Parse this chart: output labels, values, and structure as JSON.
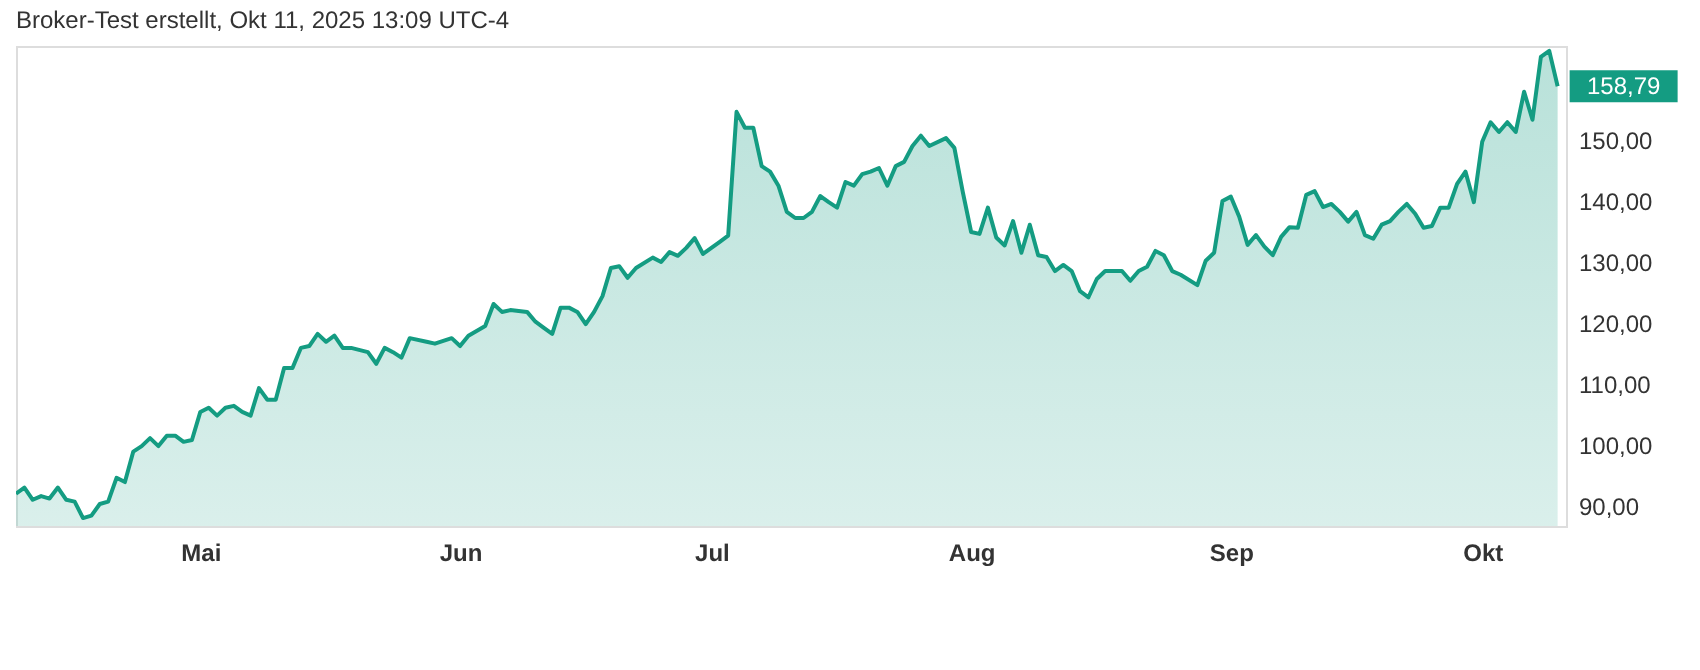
{
  "chart_data": {
    "type": "area",
    "title": "Broker-Test erstellt, Okt 11, 2025 13:09 UTC-4",
    "x": [
      "2025-04-09",
      "2025-04-10",
      "2025-04-11",
      "2025-04-12",
      "2025-04-13",
      "2025-04-14",
      "2025-04-15",
      "2025-04-16",
      "2025-04-17",
      "2025-04-18",
      "2025-04-19",
      "2025-04-20",
      "2025-04-21",
      "2025-04-22",
      "2025-04-23",
      "2025-04-24",
      "2025-04-25",
      "2025-04-26",
      "2025-04-27",
      "2025-04-28",
      "2025-04-29",
      "2025-04-30",
      "2025-05-01",
      "2025-05-02",
      "2025-05-03",
      "2025-05-04",
      "2025-05-05",
      "2025-05-06",
      "2025-05-07",
      "2025-05-08",
      "2025-05-09",
      "2025-05-10",
      "2025-05-11",
      "2025-05-12",
      "2025-05-13",
      "2025-05-14",
      "2025-05-15",
      "2025-05-16",
      "2025-05-17",
      "2025-05-18",
      "2025-05-19",
      "2025-05-21",
      "2025-05-22",
      "2025-05-23",
      "2025-05-24",
      "2025-05-25",
      "2025-05-26",
      "2025-05-28",
      "2025-05-29",
      "2025-05-31",
      "2025-06-01",
      "2025-06-02",
      "2025-06-04",
      "2025-06-05",
      "2025-06-06",
      "2025-06-07",
      "2025-06-09",
      "2025-06-10",
      "2025-06-11",
      "2025-06-12",
      "2025-06-13",
      "2025-06-14",
      "2025-06-15",
      "2025-06-16",
      "2025-06-17",
      "2025-06-18",
      "2025-06-19",
      "2025-06-20",
      "2025-06-21",
      "2025-06-22",
      "2025-06-24",
      "2025-06-25",
      "2025-06-26",
      "2025-06-27",
      "2025-06-28",
      "2025-06-29",
      "2025-06-30",
      "2025-07-02",
      "2025-07-03",
      "2025-07-04",
      "2025-07-05",
      "2025-07-06",
      "2025-07-07",
      "2025-07-08",
      "2025-07-09",
      "2025-07-10",
      "2025-07-11",
      "2025-07-12",
      "2025-07-13",
      "2025-07-14",
      "2025-07-15",
      "2025-07-16",
      "2025-07-17",
      "2025-07-18",
      "2025-07-19",
      "2025-07-20",
      "2025-07-21",
      "2025-07-22",
      "2025-07-23",
      "2025-07-24",
      "2025-07-25",
      "2025-07-26",
      "2025-07-27",
      "2025-07-29",
      "2025-07-30",
      "2025-07-31",
      "2025-08-01",
      "2025-08-02",
      "2025-08-03",
      "2025-08-04",
      "2025-08-05",
      "2025-08-06",
      "2025-08-07",
      "2025-08-08",
      "2025-08-09",
      "2025-08-10",
      "2025-08-11",
      "2025-08-12",
      "2025-08-13",
      "2025-08-14",
      "2025-08-15",
      "2025-08-16",
      "2025-08-17",
      "2025-08-19",
      "2025-08-20",
      "2025-08-21",
      "2025-08-22",
      "2025-08-23",
      "2025-08-24",
      "2025-08-25",
      "2025-08-26",
      "2025-08-28",
      "2025-08-29",
      "2025-08-30",
      "2025-08-31",
      "2025-09-01",
      "2025-09-02",
      "2025-09-03",
      "2025-09-04",
      "2025-09-05",
      "2025-09-06",
      "2025-09-07",
      "2025-09-08",
      "2025-09-09",
      "2025-09-10",
      "2025-09-11",
      "2025-09-12",
      "2025-09-13",
      "2025-09-14",
      "2025-09-15",
      "2025-09-16",
      "2025-09-17",
      "2025-09-18",
      "2025-09-19",
      "2025-09-20",
      "2025-09-21",
      "2025-09-22",
      "2025-09-23",
      "2025-09-24",
      "2025-09-25",
      "2025-09-26",
      "2025-09-27",
      "2025-09-28",
      "2025-09-29",
      "2025-09-30",
      "2025-10-01",
      "2025-10-02",
      "2025-10-03",
      "2025-10-04",
      "2025-10-05",
      "2025-10-06",
      "2025-10-07",
      "2025-10-08",
      "2025-10-09",
      "2025-10-10"
    ],
    "series": [
      {
        "color": "#149c82",
        "values": [
          92.0,
          93.0,
          91.0,
          91.6,
          91.2,
          93.0,
          91.0,
          90.7,
          88.0,
          88.4,
          90.3,
          90.7,
          94.6,
          93.9,
          98.9,
          99.8,
          101.1,
          99.8,
          101.5,
          101.5,
          100.5,
          100.8,
          105.4,
          106.1,
          104.8,
          106.1,
          106.4,
          105.4,
          104.8,
          109.3,
          107.4,
          107.4,
          112.6,
          112.6,
          115.9,
          116.2,
          118.2,
          116.9,
          117.9,
          115.9,
          115.9,
          115.2,
          113.3,
          115.9,
          115.2,
          114.3,
          117.5,
          116.9,
          116.6,
          117.5,
          116.2,
          117.9,
          119.5,
          123.1,
          121.8,
          122.1,
          121.8,
          120.2,
          119.2,
          118.2,
          122.5,
          122.5,
          121.8,
          119.8,
          121.8,
          124.4,
          129.0,
          129.3,
          127.4,
          129.0,
          130.7,
          130.0,
          131.6,
          131.0,
          132.3,
          133.9,
          131.3,
          133.3,
          134.3,
          154.6,
          152.0,
          152.0,
          145.7,
          144.8,
          142.5,
          138.2,
          137.2,
          137.2,
          138.2,
          140.8,
          139.8,
          138.9,
          143.1,
          142.5,
          144.4,
          144.8,
          145.4,
          142.5,
          145.7,
          146.4,
          149.0,
          150.7,
          149.0,
          150.3,
          148.7,
          141.5,
          134.9,
          134.6,
          138.9,
          134.0,
          132.7,
          136.7,
          131.5,
          136.1,
          131.1,
          130.8,
          128.5,
          129.5,
          128.5,
          125.2,
          124.2,
          127.2,
          128.5,
          128.5,
          126.9,
          128.5,
          129.2,
          131.8,
          131.1,
          128.5,
          127.9,
          126.2,
          130.2,
          131.5,
          140.0,
          140.7,
          137.4,
          132.8,
          134.4,
          132.5,
          131.1,
          134.1,
          135.7,
          135.6,
          141.0,
          141.6,
          139.0,
          139.5,
          138.2,
          136.6,
          138.2,
          134.4,
          133.8,
          136.1,
          136.7,
          138.2,
          139.5,
          137.9,
          135.6,
          135.9,
          138.9,
          138.9,
          142.8,
          144.8,
          139.8,
          149.7,
          152.9,
          151.3,
          152.9,
          151.3,
          157.9,
          153.3,
          163.6,
          164.6,
          158.79
        ]
      }
    ],
    "xlim": [
      "2025-04-09",
      "2025-10-11"
    ],
    "xticks": [
      {
        "value": "2025-05-01",
        "label": "Mai"
      },
      {
        "value": "2025-06-01",
        "label": "Jun"
      },
      {
        "value": "2025-07-01",
        "label": "Jul"
      },
      {
        "value": "2025-08-01",
        "label": "Aug"
      },
      {
        "value": "2025-09-01",
        "label": "Sep"
      },
      {
        "value": "2025-10-01",
        "label": "Okt"
      }
    ],
    "ylim": [
      86.7,
      165.4
    ],
    "yticks": [
      {
        "value": 90,
        "label": "90,00"
      },
      {
        "value": 100,
        "label": "100,00"
      },
      {
        "value": 110,
        "label": "110,00"
      },
      {
        "value": 120,
        "label": "120,00"
      },
      {
        "value": 130,
        "label": "130,00"
      },
      {
        "value": 140,
        "label": "140,00"
      },
      {
        "value": 150,
        "label": "150,00"
      }
    ],
    "annotations": [
      {
        "text": "158,79",
        "x": "2025-10-10",
        "y": 158.79
      }
    ]
  }
}
